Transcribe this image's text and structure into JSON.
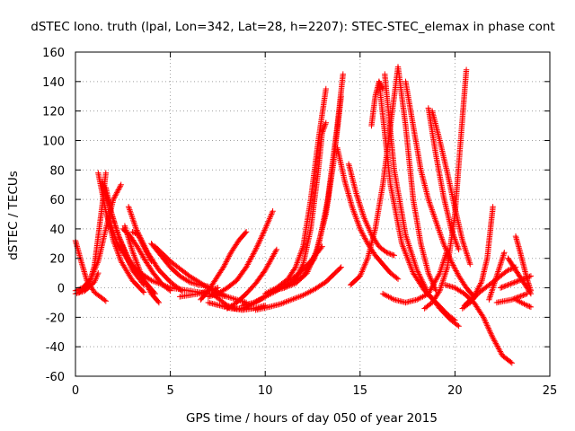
{
  "chart_data": {
    "type": "scatter",
    "title": "dSTEC Iono. truth (lpal, Lon=342, Lat=28, h=2207): STEC-STEC_elemax in phase cont",
    "xlabel": "GPS time / hours of day 050 of year 2015",
    "ylabel": "dSTEC  / TECUs",
    "xlim": [
      0,
      25
    ],
    "ylim": [
      -60,
      160
    ],
    "xticks": [
      0,
      5,
      10,
      15,
      20,
      25
    ],
    "yticks": [
      -60,
      -40,
      -20,
      0,
      20,
      40,
      60,
      80,
      100,
      120,
      140,
      160
    ],
    "grid": true,
    "marker": "+",
    "color": "#ff0000",
    "arcs": [
      {
        "x": [
          0.0,
          0.3,
          0.6,
          1.0,
          1.4,
          1.6
        ],
        "y": [
          32,
          18,
          5,
          -3,
          -7,
          -9
        ]
      },
      {
        "x": [
          0.0,
          0.4,
          0.8,
          1.2,
          1.6,
          2.0,
          2.4
        ],
        "y": [
          -2,
          0,
          6,
          18,
          40,
          60,
          70
        ]
      },
      {
        "x": [
          0.0,
          0.5,
          1.0,
          1.2
        ],
        "y": [
          -4,
          -2,
          4,
          10
        ]
      },
      {
        "x": [
          0.2,
          0.5,
          0.8,
          1.0,
          1.2,
          1.4,
          1.6
        ],
        "y": [
          -3,
          0,
          6,
          15,
          35,
          55,
          78
        ]
      },
      {
        "x": [
          1.2,
          1.6,
          2.0,
          2.4,
          3.0,
          3.6
        ],
        "y": [
          78,
          52,
          32,
          18,
          5,
          -3
        ]
      },
      {
        "x": [
          1.4,
          1.8,
          2.2,
          2.6,
          3.0,
          3.6
        ],
        "y": [
          72,
          55,
          38,
          24,
          12,
          2
        ]
      },
      {
        "x": [
          1.6,
          1.9,
          2.3,
          2.8,
          3.3,
          3.8,
          4.2
        ],
        "y": [
          68,
          50,
          34,
          20,
          10,
          2,
          -4
        ]
      },
      {
        "x": [
          1.7,
          2.2,
          3.0,
          4.0,
          5.0,
          6.0,
          7.0,
          8.0
        ],
        "y": [
          48,
          30,
          14,
          5,
          0,
          -2,
          -4,
          -6
        ]
      },
      {
        "x": [
          2.6,
          3.0,
          3.5,
          4.0,
          4.4
        ],
        "y": [
          42,
          25,
          8,
          -4,
          -10
        ]
      },
      {
        "x": [
          2.5,
          2.9,
          3.3,
          3.7,
          4.1,
          4.6,
          5.0
        ],
        "y": [
          40,
          35,
          27,
          18,
          10,
          2,
          -2
        ]
      },
      {
        "x": [
          2.8,
          3.2,
          3.8,
          4.4,
          5.0,
          5.6
        ],
        "y": [
          55,
          40,
          24,
          12,
          4,
          -2
        ]
      },
      {
        "x": [
          3.0,
          3.3,
          3.6,
          4.0
        ],
        "y": [
          38,
          36,
          28,
          18
        ]
      },
      {
        "x": [
          4.0,
          4.5,
          5.0,
          5.5,
          6.0,
          6.5,
          7.0
        ],
        "y": [
          30,
          22,
          14,
          8,
          4,
          2,
          1
        ]
      },
      {
        "x": [
          4.2,
          5.0,
          6.0,
          7.0,
          8.0,
          9.0
        ],
        "y": [
          28,
          18,
          8,
          0,
          -6,
          -10
        ]
      },
      {
        "x": [
          5.5,
          6.0,
          6.5,
          7.0,
          7.5
        ],
        "y": [
          -6,
          -5,
          -4,
          -2,
          0
        ]
      },
      {
        "x": [
          6.6,
          7.0,
          7.4,
          7.8,
          8.2,
          8.6,
          9.0
        ],
        "y": [
          -8,
          -2,
          6,
          14,
          24,
          32,
          38
        ]
      },
      {
        "x": [
          7.2,
          7.6,
          8.0,
          8.4,
          8.8,
          9.2,
          9.6,
          10.0
        ],
        "y": [
          -4,
          -8,
          -12,
          -14,
          -14,
          -12,
          -9,
          -6
        ]
      },
      {
        "x": [
          7.0,
          7.6,
          8.2,
          8.8,
          9.4,
          10.0
        ],
        "y": [
          -10,
          -12,
          -14,
          -15,
          -14,
          -12
        ]
      },
      {
        "x": [
          7.0,
          7.5,
          8.0,
          8.5,
          9.0,
          9.5,
          10.0,
          10.4
        ],
        "y": [
          -6,
          -4,
          0,
          5,
          14,
          26,
          40,
          52
        ]
      },
      {
        "x": [
          8.0,
          8.5,
          9.0,
          9.5,
          10.0,
          10.6
        ],
        "y": [
          -14,
          -10,
          -4,
          3,
          12,
          26
        ]
      },
      {
        "x": [
          8.8,
          9.4,
          10.0,
          10.6,
          11.2,
          11.8,
          12.4,
          13.0
        ],
        "y": [
          -12,
          -10,
          -6,
          -2,
          4,
          10,
          18,
          28
        ]
      },
      {
        "x": [
          9.5,
          10.2,
          10.8,
          11.4,
          12.0,
          12.6,
          13.2,
          14.0
        ],
        "y": [
          -15,
          -13,
          -11,
          -8,
          -5,
          -1,
          4,
          14
        ]
      },
      {
        "x": [
          10.0,
          10.6,
          11.2,
          11.6,
          12.0,
          12.4,
          12.8,
          13.2
        ],
        "y": [
          -4,
          0,
          6,
          14,
          28,
          60,
          100,
          135
        ]
      },
      {
        "x": [
          10.4,
          11.0,
          11.6,
          12.0,
          12.4,
          12.8,
          13.0,
          13.2
        ],
        "y": [
          -2,
          0,
          6,
          16,
          40,
          80,
          105,
          112
        ]
      },
      {
        "x": [
          11.0,
          11.6,
          12.2,
          12.8,
          13.3,
          13.8,
          14.1
        ],
        "y": [
          0,
          3,
          10,
          28,
          60,
          110,
          145
        ]
      },
      {
        "x": [
          11.5,
          12.0,
          12.6,
          13.2,
          13.6,
          14.0
        ],
        "y": [
          4,
          8,
          20,
          50,
          85,
          130
        ]
      },
      {
        "x": [
          13.8,
          14.2,
          14.6,
          15.0,
          15.4,
          15.8,
          16.2,
          16.6,
          17.0
        ],
        "y": [
          95,
          72,
          54,
          40,
          30,
          22,
          16,
          10,
          6
        ]
      },
      {
        "x": [
          14.4,
          14.8,
          15.2,
          15.6,
          16.0,
          16.4,
          16.8
        ],
        "y": [
          84,
          64,
          48,
          36,
          28,
          24,
          22
        ]
      },
      {
        "x": [
          16.0,
          16.6,
          17.2,
          17.8,
          18.4,
          19.0,
          19.6,
          20.0
        ],
        "y": [
          140,
          70,
          30,
          10,
          -2,
          -10,
          -18,
          -22
        ]
      },
      {
        "x": [
          15.6,
          15.8,
          16.0,
          16.2
        ],
        "y": [
          110,
          130,
          140,
          135
        ]
      },
      {
        "x": [
          16.3,
          16.8,
          17.4,
          18.0,
          18.6,
          19.2,
          19.8,
          20.2
        ],
        "y": [
          145,
          80,
          36,
          12,
          -4,
          -14,
          -22,
          -26
        ]
      },
      {
        "x": [
          14.5,
          15.0,
          15.4,
          15.8,
          16.2,
          16.6,
          17.0,
          17.4,
          17.8,
          18.2,
          18.6,
          19.0
        ],
        "y": [
          2,
          8,
          20,
          40,
          70,
          110,
          150,
          110,
          60,
          30,
          10,
          -2
        ]
      },
      {
        "x": [
          17.4,
          17.8,
          18.2,
          18.6,
          19.0,
          19.4,
          19.8,
          20.2,
          20.6,
          21.0
        ],
        "y": [
          140,
          110,
          80,
          60,
          45,
          30,
          18,
          8,
          0,
          -6
        ]
      },
      {
        "x": [
          18.6,
          19.0,
          19.4,
          19.8,
          20.2
        ],
        "y": [
          122,
          90,
          62,
          40,
          26
        ]
      },
      {
        "x": [
          18.8,
          19.2,
          19.6,
          20.0,
          20.4,
          20.8
        ],
        "y": [
          120,
          100,
          78,
          54,
          32,
          16
        ]
      },
      {
        "x": [
          16.2,
          16.8,
          17.4,
          18.0,
          18.6,
          19.2,
          19.6
        ],
        "y": [
          -4,
          -8,
          -10,
          -8,
          -4,
          10,
          26
        ]
      },
      {
        "x": [
          18.4,
          18.8,
          19.2,
          19.6,
          20.0,
          20.3,
          20.6
        ],
        "y": [
          -14,
          -10,
          -2,
          14,
          50,
          100,
          148
        ]
      },
      {
        "x": [
          19.5,
          20.0,
          20.5,
          21.0,
          21.5,
          22.0,
          22.5,
          23.0
        ],
        "y": [
          2,
          0,
          -4,
          -10,
          -20,
          -34,
          -46,
          -51
        ]
      },
      {
        "x": [
          20.5,
          21.0,
          21.4,
          21.7,
          22.0
        ],
        "y": [
          -12,
          -6,
          4,
          20,
          55
        ]
      },
      {
        "x": [
          20.4,
          20.8,
          21.2,
          21.6,
          22.0,
          22.4,
          22.8,
          23.2
        ],
        "y": [
          -14,
          -10,
          -4,
          0,
          4,
          8,
          12,
          14
        ]
      },
      {
        "x": [
          21.8,
          22.0,
          22.2,
          22.4,
          22.6
        ],
        "y": [
          -8,
          0,
          8,
          16,
          24
        ]
      },
      {
        "x": [
          22.2,
          22.6,
          23.0,
          23.4,
          23.8
        ],
        "y": [
          -10,
          -9,
          -8,
          -6,
          -4
        ]
      },
      {
        "x": [
          22.8,
          23.0,
          23.2,
          23.4,
          23.6,
          23.8,
          24.0
        ],
        "y": [
          20,
          16,
          12,
          8,
          4,
          0,
          -4
        ]
      },
      {
        "x": [
          23.2,
          23.4,
          23.6,
          23.8,
          24.0
        ],
        "y": [
          35,
          26,
          16,
          6,
          -2
        ]
      },
      {
        "x": [
          23.2,
          23.5,
          23.8,
          24.0
        ],
        "y": [
          -8,
          -10,
          -12,
          -13
        ]
      },
      {
        "x": [
          22.4,
          22.8,
          23.2,
          23.6,
          24.0
        ],
        "y": [
          0,
          2,
          4,
          6,
          8
        ]
      }
    ]
  }
}
